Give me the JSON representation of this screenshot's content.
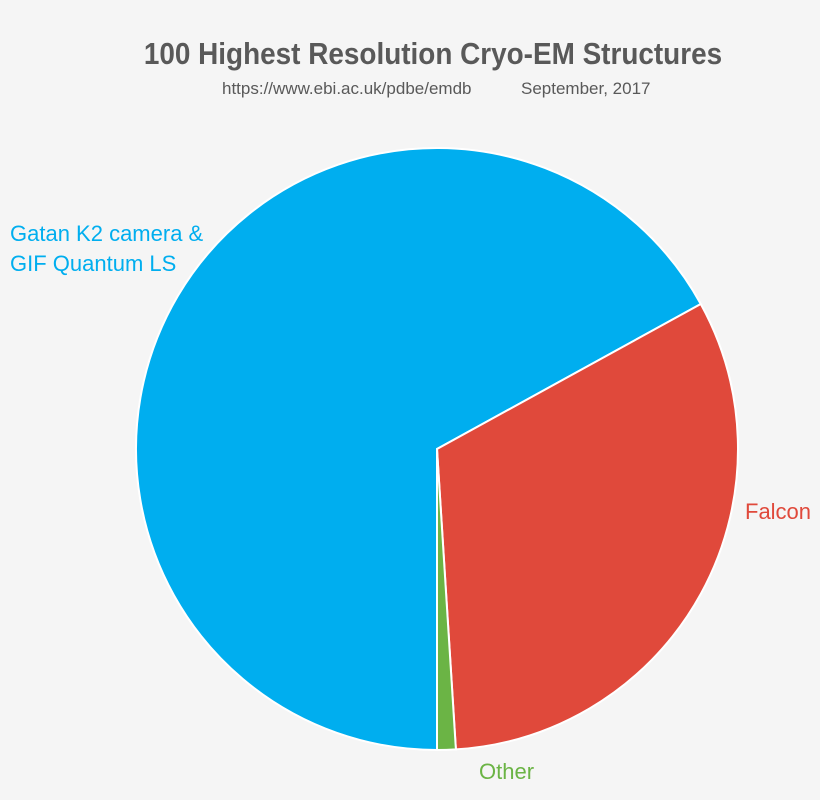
{
  "chart_data": {
    "type": "pie",
    "title": "100 Highest Resolution Cryo-EM Structures",
    "subtitle_source": "https://www.ebi.ac.uk/pdbe/emdb",
    "subtitle_date": "September, 2017",
    "slices": [
      {
        "label_line1": "Gatan K2 camera &",
        "label_line2": "GIF Quantum LS",
        "value": 67,
        "color": "#00AEEF"
      },
      {
        "label_line1": "Falcon",
        "label_line2": "",
        "value": 32,
        "color": "#E0493B"
      },
      {
        "label_line1": "Other",
        "label_line2": "",
        "value": 1,
        "color": "#6BB445"
      }
    ],
    "legend": "labels beside slices"
  }
}
